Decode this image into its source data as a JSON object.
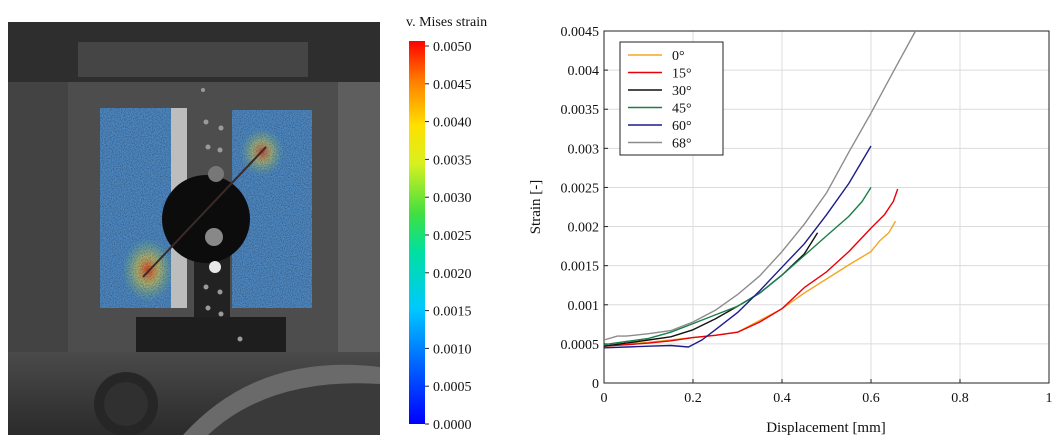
{
  "colorbar": {
    "title": "v. Mises strain",
    "ticks": [
      "0.0050",
      "0.0045",
      "0.0040",
      "0.0035",
      "0.0030",
      "0.0025",
      "0.0020",
      "0.0015",
      "0.0010",
      "0.0005",
      "0.0000"
    ],
    "range": [
      0,
      0.005
    ]
  },
  "chart_data": {
    "type": "line",
    "xlabel": "Displacement [mm]",
    "ylabel": "Strain [-]",
    "xlim": [
      0,
      1
    ],
    "ylim": [
      0,
      0.0045
    ],
    "xticks": [
      "0",
      "0.2",
      "0.4",
      "0.6",
      "0.8",
      "1"
    ],
    "yticks": [
      "0",
      "0.0005",
      "0.001",
      "0.0015",
      "0.002",
      "0.0025",
      "0.003",
      "0.0035",
      "0.004",
      "0.0045"
    ],
    "grid": true,
    "legend_position": "top-left",
    "series": [
      {
        "name": "0°",
        "color": "#f5a623",
        "points": [
          [
            0,
            0.00047
          ],
          [
            0.05,
            0.0005
          ],
          [
            0.1,
            0.00052
          ],
          [
            0.15,
            0.00055
          ],
          [
            0.2,
            0.00058
          ],
          [
            0.25,
            0.00061
          ],
          [
            0.3,
            0.00065
          ],
          [
            0.35,
            0.0008
          ],
          [
            0.4,
            0.00095
          ],
          [
            0.45,
            0.00115
          ],
          [
            0.5,
            0.00133
          ],
          [
            0.55,
            0.00151
          ],
          [
            0.6,
            0.00168
          ],
          [
            0.62,
            0.00182
          ],
          [
            0.64,
            0.00192
          ],
          [
            0.655,
            0.00207
          ]
        ]
      },
      {
        "name": "15°",
        "color": "#e8000b",
        "points": [
          [
            0,
            0.00047
          ],
          [
            0.05,
            0.00049
          ],
          [
            0.1,
            0.00051
          ],
          [
            0.15,
            0.00054
          ],
          [
            0.2,
            0.00058
          ],
          [
            0.25,
            0.00061
          ],
          [
            0.3,
            0.00065
          ],
          [
            0.35,
            0.00078
          ],
          [
            0.4,
            0.00095
          ],
          [
            0.45,
            0.00122
          ],
          [
            0.5,
            0.00142
          ],
          [
            0.55,
            0.00168
          ],
          [
            0.6,
            0.00198
          ],
          [
            0.63,
            0.00215
          ],
          [
            0.65,
            0.00232
          ],
          [
            0.66,
            0.00248
          ]
        ]
      },
      {
        "name": "30°",
        "color": "#111111",
        "points": [
          [
            0,
            0.00047
          ],
          [
            0.05,
            0.00051
          ],
          [
            0.1,
            0.00055
          ],
          [
            0.15,
            0.00059
          ],
          [
            0.2,
            0.00068
          ],
          [
            0.25,
            0.00082
          ],
          [
            0.3,
            0.00098
          ],
          [
            0.35,
            0.00115
          ],
          [
            0.4,
            0.00138
          ],
          [
            0.45,
            0.00165
          ],
          [
            0.48,
            0.00192
          ]
        ]
      },
      {
        "name": "45°",
        "color": "#1a7f4b",
        "points": [
          [
            0,
            0.00049
          ],
          [
            0.05,
            0.00053
          ],
          [
            0.1,
            0.00057
          ],
          [
            0.15,
            0.00065
          ],
          [
            0.2,
            0.00076
          ],
          [
            0.25,
            0.00087
          ],
          [
            0.3,
            0.00098
          ],
          [
            0.35,
            0.00115
          ],
          [
            0.4,
            0.00138
          ],
          [
            0.45,
            0.00163
          ],
          [
            0.5,
            0.00188
          ],
          [
            0.55,
            0.00213
          ],
          [
            0.58,
            0.00232
          ],
          [
            0.6,
            0.0025
          ]
        ]
      },
      {
        "name": "60°",
        "color": "#1c1c8c",
        "points": [
          [
            0,
            0.00045
          ],
          [
            0.05,
            0.00046
          ],
          [
            0.1,
            0.00047
          ],
          [
            0.15,
            0.00048
          ],
          [
            0.19,
            0.00046
          ],
          [
            0.22,
            0.00055
          ],
          [
            0.25,
            0.00068
          ],
          [
            0.3,
            0.0009
          ],
          [
            0.35,
            0.00118
          ],
          [
            0.4,
            0.00148
          ],
          [
            0.45,
            0.00178
          ],
          [
            0.5,
            0.00215
          ],
          [
            0.55,
            0.00255
          ],
          [
            0.6,
            0.00303
          ]
        ]
      },
      {
        "name": "68°",
        "color": "#8c8c8c",
        "points": [
          [
            0,
            0.00055
          ],
          [
            0.03,
            0.0006
          ],
          [
            0.05,
            0.0006
          ],
          [
            0.1,
            0.00063
          ],
          [
            0.15,
            0.00067
          ],
          [
            0.2,
            0.00078
          ],
          [
            0.25,
            0.00093
          ],
          [
            0.3,
            0.00113
          ],
          [
            0.35,
            0.00137
          ],
          [
            0.4,
            0.00168
          ],
          [
            0.45,
            0.00203
          ],
          [
            0.5,
            0.00243
          ],
          [
            0.55,
            0.00295
          ],
          [
            0.6,
            0.00345
          ],
          [
            0.65,
            0.00398
          ],
          [
            0.7,
            0.0045
          ]
        ]
      }
    ]
  }
}
